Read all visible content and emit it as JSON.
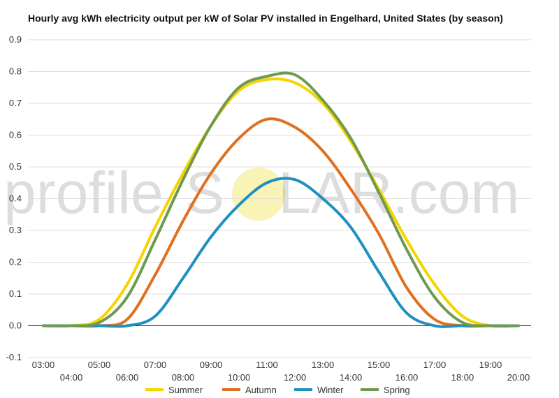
{
  "chart_data": {
    "type": "line",
    "title": "Hourly avg kWh electricity output per kW of Solar PV installed in Engelhard, United States (by season)",
    "xlabel": "",
    "ylabel": "",
    "ylim": [
      -0.1,
      0.9
    ],
    "yticks": [
      "-0.1",
      "0.0",
      "0.1",
      "0.2",
      "0.3",
      "0.4",
      "0.5",
      "0.6",
      "0.7",
      "0.8",
      "0.9"
    ],
    "grid": true,
    "legend_position": "bottom",
    "x": [
      "03:00",
      "04:00",
      "05:00",
      "06:00",
      "07:00",
      "08:00",
      "09:00",
      "10:00",
      "11:00",
      "12:00",
      "13:00",
      "14:00",
      "15:00",
      "16:00",
      "17:00",
      "18:00",
      "19:00",
      "20:00"
    ],
    "series": [
      {
        "name": "Summer",
        "color": "#f5d400",
        "values": [
          0.0,
          0.0,
          0.02,
          0.13,
          0.31,
          0.48,
          0.63,
          0.74,
          0.775,
          0.765,
          0.7,
          0.58,
          0.43,
          0.27,
          0.13,
          0.03,
          0.0,
          0.0
        ]
      },
      {
        "name": "Autumn",
        "color": "#e07020",
        "values": [
          0.0,
          0.0,
          0.0,
          0.02,
          0.16,
          0.33,
          0.48,
          0.59,
          0.65,
          0.625,
          0.55,
          0.43,
          0.29,
          0.12,
          0.02,
          0.0,
          0.0,
          0.0
        ]
      },
      {
        "name": "Winter",
        "color": "#2090c0",
        "values": [
          0.0,
          0.0,
          0.0,
          0.0,
          0.03,
          0.15,
          0.28,
          0.38,
          0.45,
          0.46,
          0.4,
          0.31,
          0.17,
          0.04,
          0.0,
          0.0,
          0.0,
          0.0
        ]
      },
      {
        "name": "Spring",
        "color": "#6e9a50",
        "values": [
          0.0,
          0.0,
          0.01,
          0.09,
          0.27,
          0.46,
          0.63,
          0.75,
          0.785,
          0.79,
          0.71,
          0.59,
          0.42,
          0.24,
          0.09,
          0.01,
          0.0,
          0.0
        ]
      }
    ]
  },
  "watermark": {
    "text_left": "profile",
    "text_middle": "S",
    "text_right": "LAR.com"
  }
}
